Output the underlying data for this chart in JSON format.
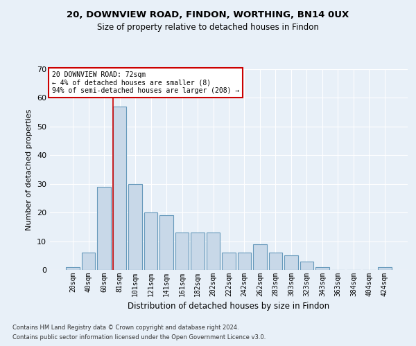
{
  "title1": "20, DOWNVIEW ROAD, FINDON, WORTHING, BN14 0UX",
  "title2": "Size of property relative to detached houses in Findon",
  "xlabel": "Distribution of detached houses by size in Findon",
  "ylabel": "Number of detached properties",
  "bar_labels": [
    "20sqm",
    "40sqm",
    "60sqm",
    "81sqm",
    "101sqm",
    "121sqm",
    "141sqm",
    "161sqm",
    "182sqm",
    "202sqm",
    "222sqm",
    "242sqm",
    "262sqm",
    "283sqm",
    "303sqm",
    "323sqm",
    "343sqm",
    "363sqm",
    "384sqm",
    "404sqm",
    "424sqm"
  ],
  "bar_values": [
    1,
    6,
    29,
    57,
    30,
    20,
    19,
    13,
    13,
    13,
    6,
    6,
    9,
    6,
    5,
    3,
    1,
    0,
    0,
    0,
    1
  ],
  "bar_color": "#c8d8e8",
  "bar_edge_color": "#6699bb",
  "property_line_label": "20 DOWNVIEW ROAD: 72sqm",
  "annotation_line1": "← 4% of detached houses are smaller (8)",
  "annotation_line2": "94% of semi-detached houses are larger (208) →",
  "annotation_box_color": "#ffffff",
  "annotation_box_edge_color": "#cc0000",
  "vline_color": "#cc0000",
  "vline_x_idx": 2.57,
  "ylim": [
    0,
    70
  ],
  "yticks": [
    0,
    10,
    20,
    30,
    40,
    50,
    60,
    70
  ],
  "footnote1": "Contains HM Land Registry data © Crown copyright and database right 2024.",
  "footnote2": "Contains public sector information licensed under the Open Government Licence v3.0.",
  "bg_color": "#e8f0f8",
  "plot_bg_color": "#e8f0f8"
}
